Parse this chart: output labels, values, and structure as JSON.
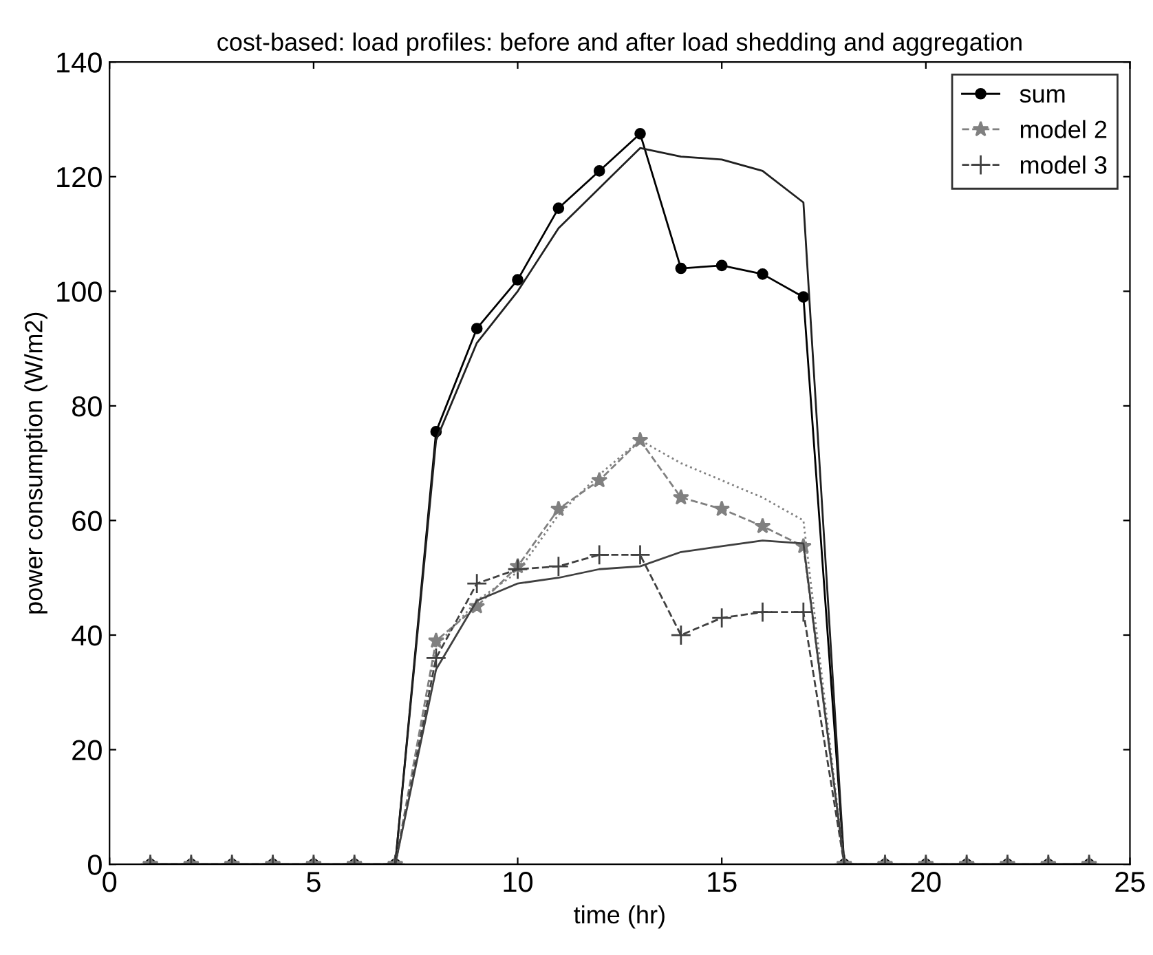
{
  "chart_data": {
    "type": "line",
    "title": "cost-based: load profiles: before and after load shedding and aggregation",
    "xlabel": "time (hr)",
    "ylabel": "power consumption (W/m2)",
    "x": [
      1,
      2,
      3,
      4,
      5,
      6,
      7,
      8,
      9,
      10,
      11,
      12,
      13,
      14,
      15,
      16,
      17,
      18,
      19,
      20,
      21,
      22,
      23,
      24
    ],
    "series": [
      {
        "name": "sum",
        "color": "#000000",
        "marker": "circle",
        "line_style": "solid",
        "values": [
          0,
          0,
          0,
          0,
          0,
          0,
          0,
          75.5,
          93.5,
          102,
          114.5,
          121,
          127.5,
          104,
          104.5,
          103,
          99,
          0,
          0,
          0,
          0,
          0,
          0,
          0
        ]
      },
      {
        "name": "model 2",
        "color": "#808080",
        "marker": "star",
        "line_style": "dashed",
        "values": [
          0,
          0,
          0,
          0,
          0,
          0,
          0,
          39,
          45,
          52,
          62,
          67,
          74,
          64,
          62,
          59,
          55.5,
          0,
          0,
          0,
          0,
          0,
          0,
          0
        ]
      },
      {
        "name": "model 3",
        "color": "#404040",
        "marker": "cross",
        "line_style": "dashed",
        "values": [
          0,
          0,
          0,
          0,
          0,
          0,
          0,
          36,
          49,
          51.5,
          52,
          54,
          54,
          40,
          43,
          44,
          44,
          0,
          0,
          0,
          0,
          0,
          0,
          0
        ]
      },
      {
        "color": "#202020",
        "marker": "none",
        "line_style": "solid",
        "values": [
          0,
          0,
          0,
          0,
          0,
          0,
          0,
          74,
          91,
          100,
          111,
          118,
          125,
          123.5,
          123,
          121,
          115.5,
          0,
          0,
          0,
          0,
          0,
          0,
          0
        ]
      },
      {
        "color": "#808080",
        "marker": "none",
        "line_style": "dotted",
        "values": [
          0,
          0,
          0,
          0,
          0,
          0,
          0,
          38,
          46,
          51,
          61,
          68,
          74,
          70,
          67,
          64,
          60,
          0,
          0,
          0,
          0,
          0,
          0,
          0
        ]
      },
      {
        "color": "#404040",
        "marker": "none",
        "line_style": "solid",
        "values": [
          0,
          0,
          0,
          0,
          0,
          0,
          0,
          34,
          46,
          49,
          50,
          51.5,
          52,
          54.5,
          55.5,
          56.5,
          56,
          0,
          0,
          0,
          0,
          0,
          0,
          0
        ]
      }
    ],
    "xlim": [
      0,
      25
    ],
    "xticks": [
      0,
      5,
      10,
      15,
      20,
      25
    ],
    "ylim": [
      0,
      140
    ],
    "yticks": [
      0,
      20,
      40,
      60,
      80,
      100,
      120,
      140
    ],
    "grid": false,
    "legend": "top right"
  }
}
